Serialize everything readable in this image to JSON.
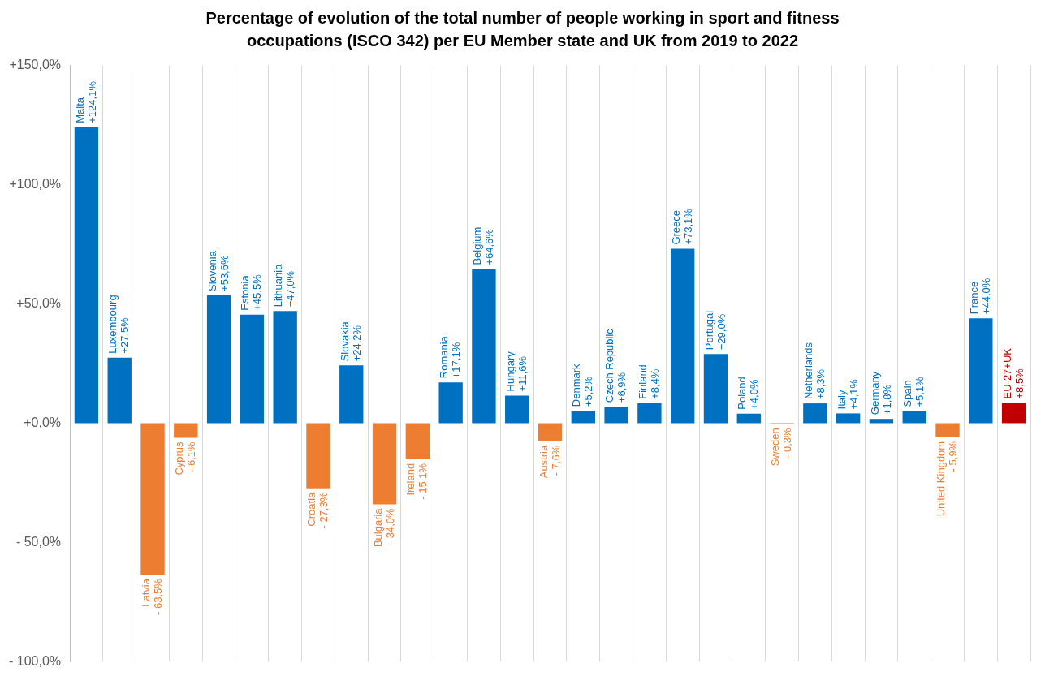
{
  "chart_data": {
    "type": "bar",
    "title": "Percentage of evolution of the total number of people working in sport and fitness occupations (ISCO 342) per EU Member state and UK from 2019 to 2022",
    "categories": [
      "Malta",
      "Luxembourg",
      "Latvia",
      "Cyprus",
      "Slovenia",
      "Estonia",
      "Lithuania",
      "Croatia",
      "Slovakia",
      "Bulgaria",
      "Ireland",
      "Romania",
      "Belgium",
      "Hungary",
      "Austria",
      "Denmark",
      "Czech Republic",
      "Finland",
      "Greece",
      "Portugal",
      "Poland",
      "Sweden",
      "Netherlands",
      "Italy",
      "Germany",
      "Spain",
      "United Kingdom",
      "France",
      "EU-27+UK"
    ],
    "values": [
      124.1,
      27.5,
      -63.5,
      -6.1,
      53.6,
      45.5,
      47.0,
      -27.3,
      24.2,
      -34.0,
      -15.1,
      17.1,
      64.6,
      11.6,
      -7.6,
      5.2,
      6.9,
      8.4,
      73.1,
      29.0,
      4.0,
      -0.3,
      8.3,
      4.1,
      1.8,
      5.1,
      -5.9,
      44.0,
      8.5
    ],
    "value_labels": [
      "+124,1%",
      "+27,5%",
      "- 63,5%",
      "- 6,1%",
      "+53,6%",
      "+45,5%",
      "+47,0%",
      "- 27,3%",
      "+24,2%",
      "- 34,0%",
      "- 15,1%",
      "+17,1%",
      "+64,6%",
      "+11,6%",
      "- 7,6%",
      "+5,2%",
      "+6,9%",
      "+8,4%",
      "+73,1%",
      "+29,0%",
      "+4,0%",
      "- 0,3%",
      "+8,3%",
      "+4,1%",
      "+1,8%",
      "+5,1%",
      "- 5,9%",
      "+44,0%",
      "+8,5%"
    ],
    "colors": [
      "#0070c0",
      "#0070c0",
      "#ed7d31",
      "#ed7d31",
      "#0070c0",
      "#0070c0",
      "#0070c0",
      "#ed7d31",
      "#0070c0",
      "#ed7d31",
      "#ed7d31",
      "#0070c0",
      "#0070c0",
      "#0070c0",
      "#ed7d31",
      "#0070c0",
      "#0070c0",
      "#0070c0",
      "#0070c0",
      "#0070c0",
      "#0070c0",
      "#ed7d31",
      "#0070c0",
      "#0070c0",
      "#0070c0",
      "#0070c0",
      "#ed7d31",
      "#0070c0",
      "#c00000"
    ],
    "ylim": [
      -100,
      150
    ],
    "yticks": [
      {
        "value": -100,
        "label": "- 100,0%"
      },
      {
        "value": -50,
        "label": "- 50,0%"
      },
      {
        "value": 0,
        "label": "+0,0%"
      },
      {
        "value": 50,
        "label": "+50,0%"
      },
      {
        "value": 100,
        "label": "+100,0%"
      },
      {
        "value": 150,
        "label": "+150,0%"
      }
    ],
    "grid": "x",
    "tick_labels": "y"
  }
}
